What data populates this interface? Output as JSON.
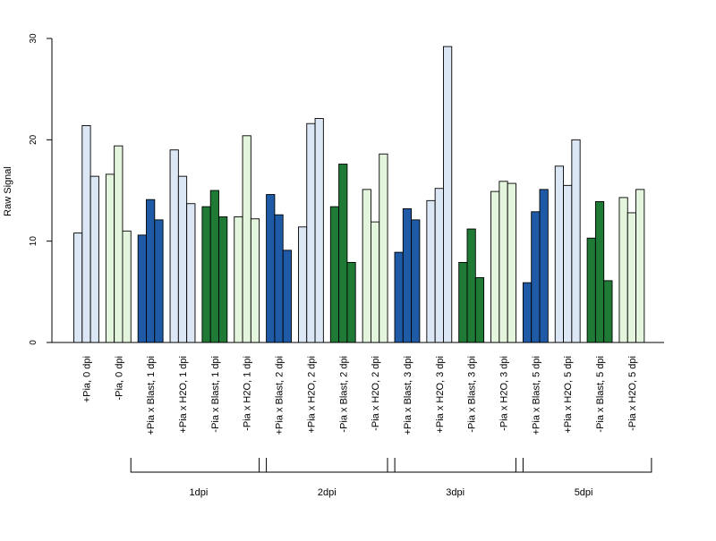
{
  "chart_data": {
    "type": "bar",
    "title": "",
    "xlabel": "",
    "ylabel": "Raw Signal",
    "ylim": [
      0,
      30
    ],
    "yticks": [
      0,
      10,
      20,
      30
    ],
    "grid": false,
    "legend": "none",
    "categories": [
      "+Pia, 0 dpi",
      "-Pia, 0 dpi",
      "+Pia x Blast, 1 dpi",
      "+Pia x H2O, 1 dpi",
      "-Pia x Blast, 1 dpi",
      "-Pia x H2O, 1 dpi",
      "+Pia x Blast, 2 dpi",
      "+Pia x H2O, 2 dpi",
      "-Pia x Blast, 2 dpi",
      "-Pia x H2O, 2 dpi",
      "+Pia x Blast, 3 dpi",
      "+Pia x H2O, 3 dpi",
      "-Pia x Blast, 3 dpi",
      "-Pia x H2O, 3 dpi",
      "+Pia x Blast, 5 dpi",
      "+Pia x H2O, 5 dpi",
      "-Pia x Blast, 5 dpi",
      "-Pia x H2O, 5 dpi"
    ],
    "colors": [
      "#dbe7f5",
      "#e3f5dc",
      "#1f5aa6",
      "#dbe7f5",
      "#1f7a35",
      "#e3f5dc",
      "#1f5aa6",
      "#dbe7f5",
      "#1f7a35",
      "#e3f5dc",
      "#1f5aa6",
      "#dbe7f5",
      "#1f7a35",
      "#e3f5dc",
      "#1f5aa6",
      "#dbe7f5",
      "#1f7a35",
      "#e3f5dc"
    ],
    "values": [
      [
        10.8,
        21.4,
        16.4
      ],
      [
        16.6,
        19.4,
        11.0
      ],
      [
        10.6,
        14.1,
        12.1
      ],
      [
        19.0,
        16.4,
        13.7
      ],
      [
        13.4,
        15.0,
        12.4
      ],
      [
        12.4,
        20.4,
        12.2
      ],
      [
        14.6,
        12.6,
        9.1
      ],
      [
        11.4,
        21.6,
        22.1
      ],
      [
        13.4,
        17.6,
        7.9
      ],
      [
        15.1,
        11.9,
        18.6
      ],
      [
        8.9,
        13.2,
        12.1
      ],
      [
        14.0,
        15.2,
        29.2
      ],
      [
        7.9,
        11.2,
        6.4
      ],
      [
        14.9,
        15.9,
        15.7
      ],
      [
        5.9,
        12.9,
        15.1
      ],
      [
        17.4,
        15.5,
        20.0
      ],
      [
        10.3,
        13.9,
        6.1
      ],
      [
        14.3,
        12.8,
        15.1
      ]
    ],
    "groups": [
      {
        "label": "1dpi",
        "from": 2,
        "to": 5
      },
      {
        "label": "2dpi",
        "from": 6,
        "to": 9
      },
      {
        "label": "3dpi",
        "from": 10,
        "to": 13
      },
      {
        "label": "5dpi",
        "from": 14,
        "to": 17
      }
    ]
  }
}
